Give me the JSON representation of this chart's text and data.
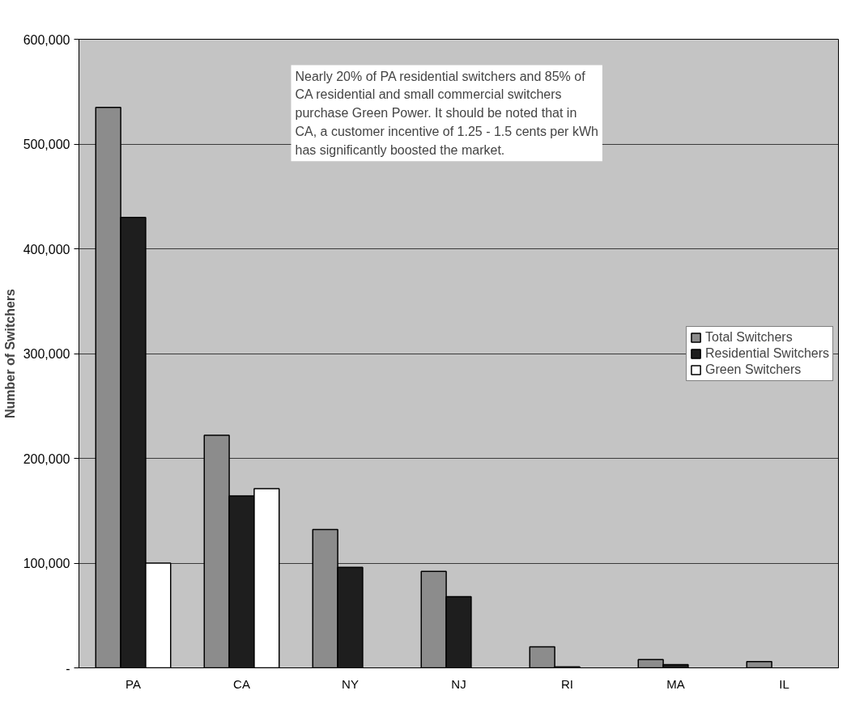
{
  "chart_data": {
    "type": "bar",
    "ylabel": "Number of Switchers",
    "categories": [
      "PA",
      "CA",
      "NY",
      "NJ",
      "RI",
      "MA",
      "IL"
    ],
    "series": [
      {
        "name": "Total Switchers",
        "color": "#8c8c8c",
        "values": [
          535000,
          222000,
          132000,
          92000,
          20000,
          8000,
          6000
        ]
      },
      {
        "name": "Residential Switchers",
        "color": "#1e1e1e",
        "values": [
          430000,
          164000,
          96000,
          68000,
          1000,
          3000,
          null
        ]
      },
      {
        "name": "Green Switchers",
        "color": "#ffffff",
        "values": [
          100000,
          171000,
          null,
          null,
          null,
          null,
          null
        ]
      }
    ],
    "ylim": [
      0,
      600000
    ],
    "yticks": [
      {
        "value": 0,
        "label": "-"
      },
      {
        "value": 100000,
        "label": "100,000"
      },
      {
        "value": 200000,
        "label": "200,000"
      },
      {
        "value": 300000,
        "label": "300,000"
      },
      {
        "value": 400000,
        "label": "400,000"
      },
      {
        "value": 500000,
        "label": "500,000"
      },
      {
        "value": 600000,
        "label": "600,000"
      }
    ],
    "grid": "y",
    "legend": "right",
    "annotations": [
      "Nearly 20% of PA residential switchers and 85% of\nCA residential and small commercial switchers\npurchase Green Power.  It should be noted that in\nCA, a customer incentive of 1.25 - 1.5 cents per kWh\nhas significantly boosted the market."
    ]
  }
}
